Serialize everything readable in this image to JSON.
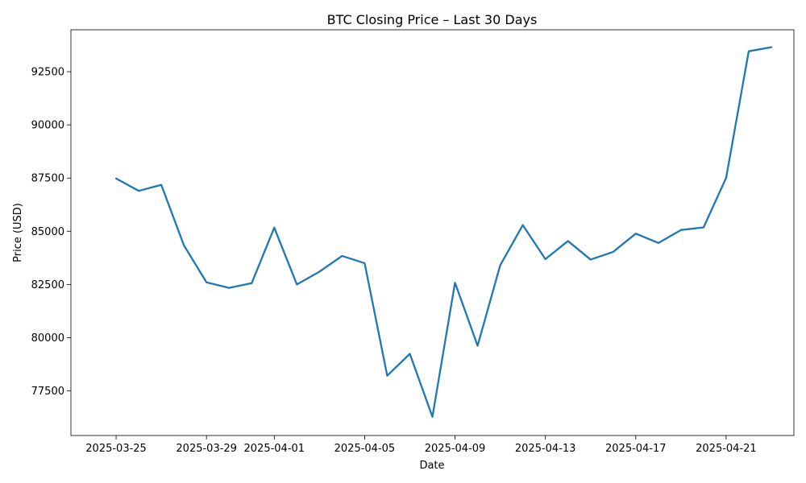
{
  "chart_data": {
    "type": "line",
    "title": "BTC Closing Price – Last 30 Days",
    "xlabel": "Date",
    "ylabel": "Price (USD)",
    "x": [
      "2025-03-25",
      "2025-03-26",
      "2025-03-27",
      "2025-03-28",
      "2025-03-29",
      "2025-03-30",
      "2025-03-31",
      "2025-04-01",
      "2025-04-02",
      "2025-04-03",
      "2025-04-04",
      "2025-04-05",
      "2025-04-06",
      "2025-04-07",
      "2025-04-08",
      "2025-04-09",
      "2025-04-10",
      "2025-04-11",
      "2025-04-12",
      "2025-04-13",
      "2025-04-14",
      "2025-04-15",
      "2025-04-16",
      "2025-04-17",
      "2025-04-18",
      "2025-04-19",
      "2025-04-20",
      "2025-04-21",
      "2025-04-22",
      "2025-04-23"
    ],
    "series": [
      {
        "values": [
          87480,
          86900,
          87180,
          84340,
          82600,
          82340,
          82560,
          85170,
          82500,
          83100,
          83840,
          83500,
          78210,
          79240,
          76280,
          82580,
          79620,
          83400,
          85290,
          83690,
          84540,
          83670,
          84030,
          84890,
          84450,
          85060,
          85180,
          87510,
          93460,
          93650
        ],
        "color": "#1f77b4"
      }
    ],
    "xticks": [
      "2025-03-25",
      "2025-03-29",
      "2025-04-01",
      "2025-04-05",
      "2025-04-09",
      "2025-04-13",
      "2025-04-17",
      "2025-04-21"
    ],
    "yticks": [
      77500,
      80000,
      82500,
      85000,
      87500,
      90000,
      92500
    ],
    "xlim": [
      "2025-03-23",
      "2025-04-24"
    ],
    "ylim": [
      75400,
      94470
    ],
    "grid": false,
    "legend": "none"
  }
}
